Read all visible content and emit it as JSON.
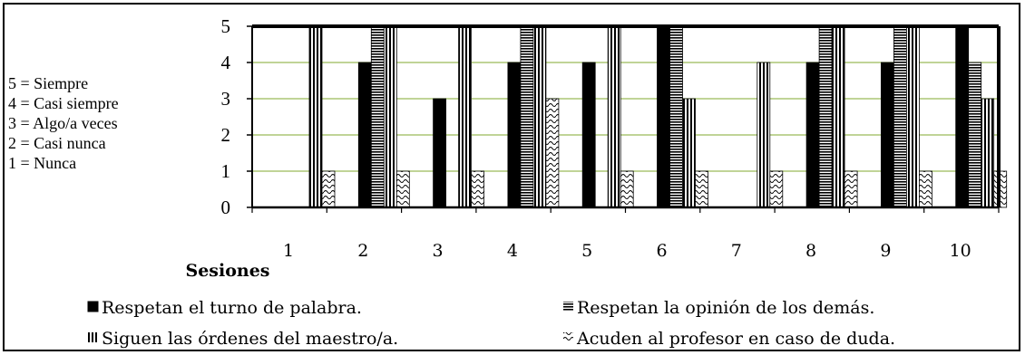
{
  "chart_data": {
    "type": "bar",
    "categories": [
      "1",
      "2",
      "3",
      "4",
      "5",
      "6",
      "7",
      "8",
      "9",
      "10"
    ],
    "series": [
      {
        "name": "Respetan el turno de palabra.",
        "values": [
          0,
          4,
          3,
          4,
          4,
          5,
          0,
          4,
          4,
          5
        ]
      },
      {
        "name": "Respetan la opinión de los demás.",
        "values": [
          0,
          5,
          0,
          5,
          0,
          5,
          0,
          5,
          5,
          4
        ]
      },
      {
        "name": "Siguen las órdenes del maestro/a.",
        "values": [
          5,
          5,
          5,
          5,
          5,
          3,
          4,
          5,
          5,
          3
        ]
      },
      {
        "name": "Acuden al profesor en caso de duda.",
        "values": [
          1,
          1,
          1,
          3,
          1,
          1,
          1,
          1,
          1,
          1
        ]
      }
    ],
    "yticks": [
      "0",
      "1",
      "2",
      "3",
      "4",
      "5"
    ],
    "ylim": [
      0,
      5
    ],
    "xlabel": "Sesiones",
    "grid": true,
    "legend_position": "bottom",
    "scale_legend": [
      "5 = Siempre",
      "4 = Casi siempre",
      "3 = Algo/a veces",
      "2 = Casi nunca",
      "1 = Nunca"
    ],
    "colors": {
      "gridline": "#9bbb59",
      "bar": "#000000"
    }
  }
}
